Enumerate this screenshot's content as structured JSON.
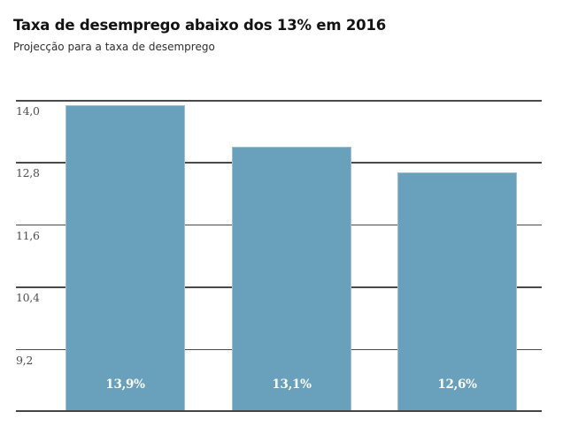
{
  "chart_data": {
    "type": "bar",
    "title": "Taxa de desemprego abaixo dos 13% em 2016",
    "subtitle": "Projecção para a taxa de desemprego",
    "values": [
      13.9,
      13.1,
      12.6
    ],
    "bar_labels": [
      "13,9%",
      "13,1%",
      "12,6%"
    ],
    "yticks": [
      "14,0",
      "12,8",
      "11,6",
      "10,4",
      "9,2"
    ],
    "ytick_values": [
      14.0,
      12.8,
      11.6,
      10.4,
      9.2
    ],
    "ylim": [
      8.0,
      14.0
    ],
    "grid": true,
    "legend": "none",
    "xlabel": "",
    "ylabel": "",
    "colors": {
      "bar": "#69a0bc",
      "gridline": "#4a4a4a",
      "axis_line": "#454545",
      "tick_text": "#4f4f4f",
      "bar_label_text": "#ffffff",
      "title_text": "#131313",
      "subtitle_text": "#2e2e2e"
    }
  }
}
